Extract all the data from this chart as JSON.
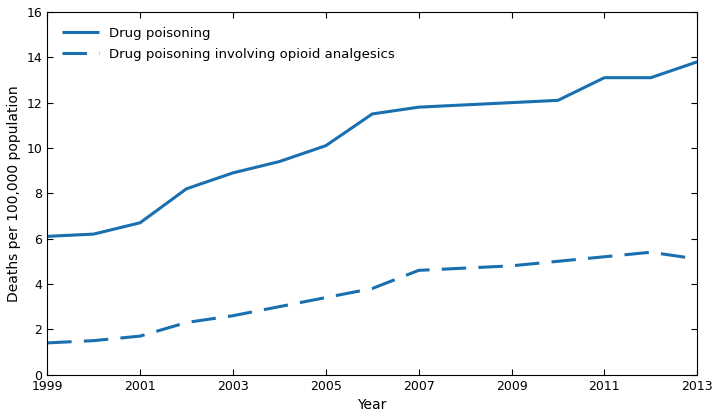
{
  "years": [
    1999,
    2000,
    2001,
    2002,
    2003,
    2004,
    2005,
    2006,
    2007,
    2008,
    2009,
    2010,
    2011,
    2012,
    2013
  ],
  "drug_poisoning": [
    6.1,
    6.2,
    6.7,
    8.2,
    8.9,
    9.4,
    10.1,
    11.5,
    11.8,
    11.9,
    12.0,
    12.1,
    13.1,
    13.1,
    13.8
  ],
  "opioid_analgesics": [
    1.4,
    1.5,
    1.7,
    2.3,
    2.6,
    3.0,
    3.4,
    3.8,
    4.6,
    4.7,
    4.8,
    5.0,
    5.2,
    5.4,
    5.1
  ],
  "line_color": "#1a6faf",
  "solid_label": "Drug poisoning",
  "dashed_label": "Drug poisoning involving opioid analgesics",
  "xlabel": "Year",
  "ylabel": "Deaths per 100,000 population",
  "ylim": [
    0,
    16
  ],
  "yticks": [
    0,
    2,
    4,
    6,
    8,
    10,
    12,
    14,
    16
  ],
  "xticks": [
    1999,
    2001,
    2003,
    2005,
    2007,
    2009,
    2011,
    2013
  ],
  "linewidth": 2.2,
  "fontsize_labels": 10,
  "fontsize_ticks": 9,
  "fontsize_legend": 9.5,
  "background_color": "#ffffff",
  "spine_color": "#000000",
  "dash_pattern": [
    8,
    4
  ]
}
